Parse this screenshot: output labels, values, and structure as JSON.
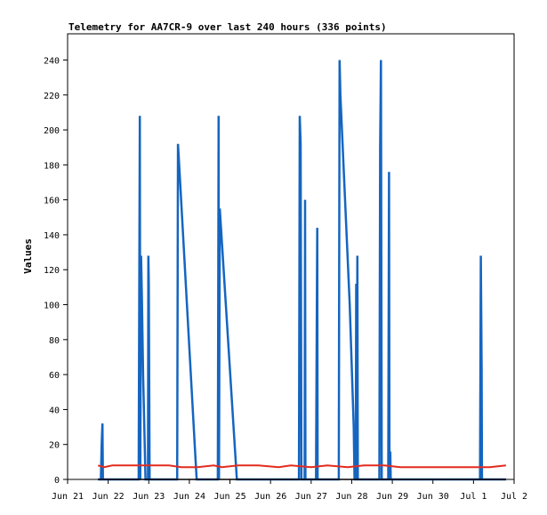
{
  "chart_data": {
    "type": "line",
    "title": "Telemetry for AA7CR-9 over last 240 hours (336 points)",
    "ylabel": "Values",
    "xlabel": "",
    "ylim": [
      0,
      255
    ],
    "yticks": [
      0,
      20,
      40,
      60,
      80,
      100,
      120,
      140,
      160,
      180,
      200,
      220,
      240
    ],
    "x_unit": "days since Jun 21 00:00",
    "xlim": [
      0,
      11
    ],
    "xtick_labels": [
      "Jun 21",
      "Jun 22",
      "Jun 23",
      "Jun 24",
      "Jun 25",
      "Jun 26",
      "Jun 27",
      "Jun 28",
      "Jun 29",
      "Jun 30",
      "Jul 1",
      "Jul 2"
    ],
    "grid": false,
    "series": [
      {
        "name": "",
        "color": "#1565c0",
        "points": [
          [
            0.75,
            0
          ],
          [
            0.82,
            0
          ],
          [
            0.84,
            20
          ],
          [
            0.86,
            32
          ],
          [
            0.87,
            0
          ],
          [
            1.75,
            0
          ],
          [
            1.78,
            208
          ],
          [
            1.79,
            0
          ],
          [
            1.81,
            128
          ],
          [
            1.83,
            105
          ],
          [
            1.86,
            60
          ],
          [
            1.9,
            20
          ],
          [
            1.92,
            0
          ],
          [
            1.98,
            0
          ],
          [
            1.99,
            128
          ],
          [
            2.0,
            112
          ],
          [
            2.02,
            0
          ],
          [
            2.7,
            0
          ],
          [
            2.72,
            192
          ],
          [
            2.76,
            175
          ],
          [
            3.18,
            0
          ],
          [
            3.7,
            0
          ],
          [
            3.72,
            208
          ],
          [
            3.73,
            0
          ],
          [
            3.75,
            155
          ],
          [
            4.17,
            0
          ],
          [
            5.7,
            0
          ],
          [
            5.72,
            208
          ],
          [
            5.74,
            192
          ],
          [
            5.76,
            0
          ],
          [
            5.84,
            0
          ],
          [
            5.85,
            160
          ],
          [
            5.86,
            0
          ],
          [
            6.12,
            0
          ],
          [
            6.14,
            96
          ],
          [
            6.15,
            144
          ],
          [
            6.16,
            0
          ],
          [
            6.68,
            0
          ],
          [
            6.7,
            240
          ],
          [
            6.72,
            220
          ],
          [
            6.95,
            100
          ],
          [
            7.05,
            30
          ],
          [
            7.07,
            0
          ],
          [
            7.1,
            0
          ],
          [
            7.11,
            112
          ],
          [
            7.12,
            0
          ],
          [
            7.14,
            128
          ],
          [
            7.15,
            0
          ],
          [
            7.68,
            0
          ],
          [
            7.7,
            190
          ],
          [
            7.72,
            240
          ],
          [
            7.74,
            0
          ],
          [
            7.9,
            0
          ],
          [
            7.92,
            176
          ],
          [
            7.93,
            0
          ],
          [
            7.95,
            16
          ],
          [
            7.96,
            0
          ],
          [
            10.16,
            0
          ],
          [
            10.18,
            128
          ],
          [
            10.2,
            64
          ],
          [
            10.21,
            0
          ],
          [
            10.8,
            0
          ]
        ]
      },
      {
        "name": "",
        "color": "#e32b1f",
        "points": [
          [
            0.75,
            8
          ],
          [
            0.9,
            7
          ],
          [
            1.1,
            8
          ],
          [
            1.6,
            8
          ],
          [
            2.0,
            8
          ],
          [
            2.5,
            8
          ],
          [
            2.8,
            7
          ],
          [
            3.2,
            7
          ],
          [
            3.6,
            8
          ],
          [
            3.8,
            7
          ],
          [
            4.2,
            8
          ],
          [
            4.7,
            8
          ],
          [
            5.2,
            7
          ],
          [
            5.5,
            8
          ],
          [
            6.0,
            7
          ],
          [
            6.4,
            8
          ],
          [
            6.9,
            7
          ],
          [
            7.3,
            8
          ],
          [
            7.8,
            8
          ],
          [
            8.2,
            7
          ],
          [
            8.6,
            7
          ],
          [
            9.0,
            7
          ],
          [
            9.5,
            7
          ],
          [
            10.0,
            7
          ],
          [
            10.4,
            7
          ],
          [
            10.8,
            8
          ]
        ]
      },
      {
        "name": "",
        "color": "#000000",
        "points": [
          [
            0.75,
            0
          ],
          [
            10.8,
            0
          ]
        ]
      }
    ]
  }
}
